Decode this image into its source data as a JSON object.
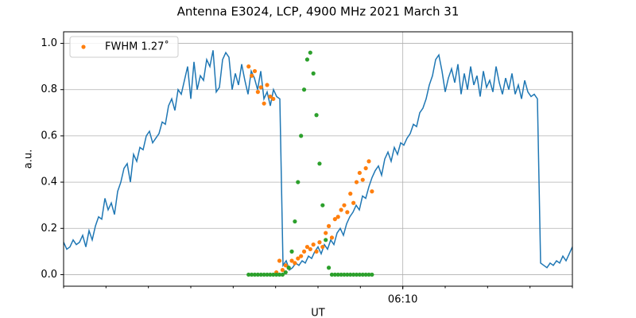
{
  "chart_data": {
    "type": "line",
    "title": "Antenna E3024, LCP, 4900 MHz 2021 March 31",
    "xlabel": "UT",
    "ylabel": "a.u.",
    "xlim": [
      "06:02",
      "06:14"
    ],
    "xticks": [
      "06:10"
    ],
    "ylim": [
      -0.05,
      1.05
    ],
    "yticks": [
      {
        "value": 0,
        "label": "0.0"
      },
      0.2,
      0.4,
      0.6,
      0.8,
      {
        "value": 1,
        "label": "1.0"
      }
    ],
    "grid": true,
    "legend": "upper left",
    "series": [
      {
        "color": "#1f77b4",
        "kind": "line",
        "values": [
          0.14,
          0.11,
          0.12,
          0.15,
          0.13,
          0.14,
          0.17,
          0.12,
          0.19,
          0.15,
          0.21,
          0.25,
          0.24,
          0.33,
          0.28,
          0.31,
          0.26,
          0.36,
          0.4,
          0.46,
          0.48,
          0.4,
          0.52,
          0.49,
          0.55,
          0.54,
          0.6,
          0.62,
          0.57,
          0.59,
          0.61,
          0.66,
          0.65,
          0.73,
          0.76,
          0.71,
          0.8,
          0.78,
          0.84,
          0.9,
          0.76,
          0.92,
          0.8,
          0.86,
          0.84,
          0.93,
          0.9,
          0.97,
          0.79,
          0.81,
          0.93,
          0.96,
          0.94,
          0.8,
          0.87,
          0.82,
          0.91,
          0.84,
          0.78,
          0.88,
          0.85,
          0.8,
          0.88,
          0.76,
          0.79,
          0.73,
          0.8,
          0.77,
          0.76,
          0.04,
          0.06,
          0.02,
          0.03,
          0.05,
          0.04,
          0.06,
          0.05,
          0.08,
          0.07,
          0.1,
          0.12,
          0.09,
          0.13,
          0.11,
          0.15,
          0.13,
          0.18,
          0.2,
          0.17,
          0.22,
          0.25,
          0.27,
          0.3,
          0.28,
          0.34,
          0.33,
          0.38,
          0.42,
          0.45,
          0.47,
          0.43,
          0.5,
          0.53,
          0.49,
          0.55,
          0.52,
          0.57,
          0.56,
          0.59,
          0.61,
          0.65,
          0.64,
          0.7,
          0.72,
          0.76,
          0.82,
          0.86,
          0.93,
          0.95,
          0.88,
          0.79,
          0.85,
          0.89,
          0.83,
          0.91,
          0.78,
          0.87,
          0.8,
          0.9,
          0.82,
          0.86,
          0.77,
          0.88,
          0.81,
          0.84,
          0.79,
          0.9,
          0.83,
          0.78,
          0.85,
          0.8,
          0.87,
          0.78,
          0.82,
          0.76,
          0.84,
          0.79,
          0.77,
          0.78,
          0.76,
          0.05,
          0.04,
          0.03,
          0.05,
          0.04,
          0.06,
          0.05,
          0.08,
          0.06,
          0.09,
          0.12
        ]
      },
      {
        "name": "FWHM 1.27˚",
        "color": "#ff7f0e",
        "kind": "scatter",
        "values": [
          null,
          null,
          null,
          null,
          null,
          null,
          null,
          null,
          null,
          null,
          null,
          null,
          null,
          null,
          null,
          null,
          null,
          null,
          null,
          null,
          null,
          null,
          null,
          null,
          null,
          null,
          null,
          null,
          null,
          null,
          null,
          null,
          null,
          null,
          null,
          null,
          null,
          null,
          null,
          null,
          null,
          null,
          null,
          null,
          null,
          null,
          null,
          null,
          null,
          null,
          null,
          null,
          null,
          null,
          null,
          null,
          null,
          null,
          null,
          null,
          0.9,
          0.86,
          0.88,
          0.79,
          0.81,
          0.74,
          0.82,
          0.77,
          0.76,
          0.01,
          0.06,
          0.02,
          0.04,
          0.03,
          0.06,
          0.05,
          0.07,
          0.08,
          0.1,
          0.12,
          0.11,
          0.13,
          0.1,
          0.14,
          0.12,
          0.18,
          0.21,
          0.16,
          0.24,
          0.25,
          0.28,
          0.3,
          0.27,
          0.35,
          0.31,
          0.4,
          0.44,
          0.41,
          0.46,
          0.49,
          0.36,
          null,
          null,
          null,
          null,
          null,
          null,
          null,
          null,
          null,
          null,
          null,
          null,
          null,
          null,
          null,
          null,
          null,
          null,
          null,
          null,
          null,
          null,
          null,
          null,
          null,
          null,
          null,
          null,
          null,
          null,
          null,
          null,
          null,
          null,
          null,
          null,
          null,
          null,
          null,
          null,
          null,
          null,
          null,
          null,
          null,
          null,
          null,
          null,
          null,
          null,
          null,
          null,
          null,
          null,
          null,
          null,
          null,
          null,
          null,
          null,
          null,
          null,
          null,
          null,
          null
        ]
      },
      {
        "color": "#2ca02c",
        "kind": "scatter",
        "values": [
          null,
          null,
          null,
          null,
          null,
          null,
          null,
          null,
          null,
          null,
          null,
          null,
          null,
          null,
          null,
          null,
          null,
          null,
          null,
          null,
          null,
          null,
          null,
          null,
          null,
          null,
          null,
          null,
          null,
          null,
          null,
          null,
          null,
          null,
          null,
          null,
          null,
          null,
          null,
          null,
          null,
          null,
          null,
          null,
          null,
          null,
          null,
          null,
          null,
          null,
          null,
          null,
          null,
          null,
          null,
          null,
          null,
          null,
          null,
          null,
          0,
          0,
          0,
          0,
          0,
          0,
          0,
          0,
          0,
          0,
          0,
          0,
          0.01,
          0.03,
          0.1,
          0.23,
          0.4,
          0.6,
          0.8,
          0.93,
          0.96,
          0.87,
          0.69,
          0.48,
          0.3,
          0.15,
          0.03,
          0,
          0,
          0,
          0,
          0,
          0,
          0,
          0,
          0,
          0,
          0,
          0,
          0,
          0,
          null,
          null,
          null,
          null,
          null,
          null,
          null,
          null,
          null,
          null,
          null,
          null,
          null,
          null,
          null,
          null,
          null,
          null,
          null,
          null,
          null,
          null,
          null,
          null,
          null,
          null,
          null,
          null,
          null,
          null,
          null,
          null,
          null,
          null,
          null,
          null,
          null,
          null,
          null,
          null,
          null,
          null,
          null,
          null,
          null,
          null,
          null,
          null,
          null,
          null,
          null,
          null,
          null,
          null,
          null,
          null,
          null,
          null,
          null,
          null,
          null,
          null,
          null,
          null,
          null
        ]
      }
    ]
  }
}
